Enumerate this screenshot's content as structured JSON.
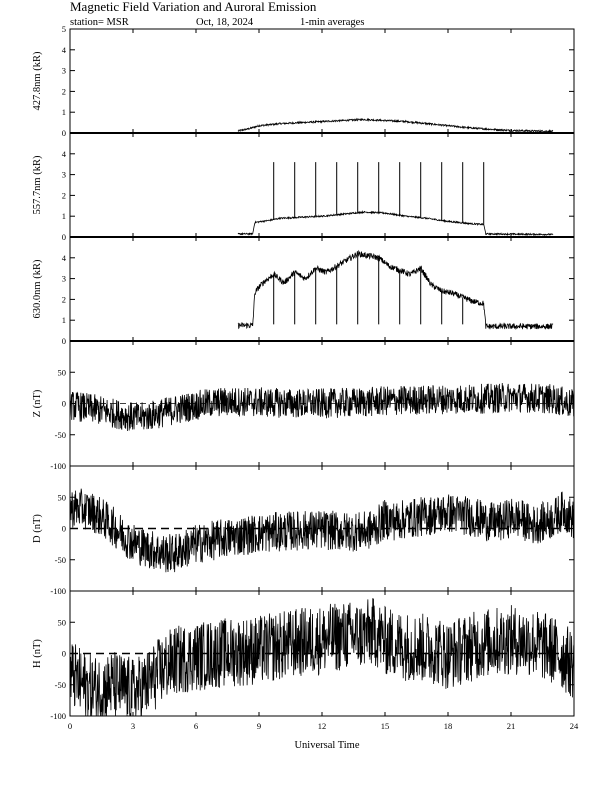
{
  "header": {
    "title": "Magnetic Field Variation and Auroral Emission",
    "station": "station= MSR",
    "date": "Oct, 18, 2024",
    "averaging": "1-min averages"
  },
  "chart_data": {
    "type": "line",
    "title": "Magnetic Field Variation and Auroral Emission",
    "xlabel": "Universal Time",
    "xlim": [
      0,
      24
    ],
    "xticks": [
      0,
      3,
      6,
      9,
      12,
      15,
      18,
      21,
      24
    ],
    "panels": [
      {
        "name": "427.8nm",
        "ylabel": "427.8nm (kR)",
        "ylim": [
          0,
          5
        ],
        "yticks": [
          0,
          1,
          2,
          3,
          4,
          5
        ],
        "zero_line": "solid",
        "noise": 0.08,
        "x": [
          8.0,
          8.5,
          9.0,
          10.0,
          11.0,
          12.0,
          13.0,
          14.0,
          15.0,
          16.0,
          17.0,
          18.0,
          19.0,
          20.0,
          21.0,
          22.0,
          23.0
        ],
        "y": [
          0.1,
          0.2,
          0.35,
          0.45,
          0.5,
          0.55,
          0.6,
          0.65,
          0.6,
          0.55,
          0.45,
          0.35,
          0.25,
          0.18,
          0.12,
          0.1,
          0.08
        ],
        "spikes": []
      },
      {
        "name": "557.7nm",
        "ylabel": "557.7nm (kR)",
        "ylim": [
          0,
          5
        ],
        "yticks": [
          0,
          1,
          2,
          3,
          4
        ],
        "zero_line": "solid",
        "noise": 0.07,
        "x": [
          8.0,
          8.7,
          8.8,
          9.5,
          10.0,
          11.0,
          12.0,
          13.0,
          14.0,
          15.0,
          16.0,
          17.0,
          18.0,
          19.0,
          19.7,
          19.8,
          23.0
        ],
        "y": [
          0.15,
          0.15,
          0.7,
          0.8,
          0.9,
          0.95,
          1.0,
          1.1,
          1.2,
          1.15,
          1.0,
          0.9,
          0.75,
          0.65,
          0.6,
          0.15,
          0.12
        ],
        "spikes": [
          9.7,
          10.7,
          11.7,
          12.7,
          13.7,
          14.7,
          15.7,
          16.7,
          17.7,
          18.7,
          19.7
        ],
        "spike_top": 3.6
      },
      {
        "name": "630.0nm",
        "ylabel": "630.0nm (kR)",
        "ylim": [
          0,
          5
        ],
        "yticks": [
          0,
          1,
          2,
          3,
          4
        ],
        "zero_line": "solid",
        "noise": 0.28,
        "x": [
          8.0,
          8.7,
          8.8,
          9.0,
          9.3,
          9.7,
          10.2,
          10.7,
          11.2,
          11.7,
          12.2,
          12.7,
          13.2,
          13.7,
          14.2,
          14.7,
          15.2,
          15.7,
          16.2,
          16.7,
          17.2,
          17.7,
          18.2,
          18.7,
          19.2,
          19.7,
          19.8,
          23.0
        ],
        "y": [
          0.75,
          0.75,
          2.3,
          2.6,
          2.9,
          3.2,
          2.8,
          3.3,
          3.0,
          3.5,
          3.3,
          3.6,
          3.9,
          4.2,
          4.1,
          4.0,
          3.6,
          3.4,
          3.2,
          3.5,
          2.7,
          2.4,
          2.3,
          2.1,
          1.9,
          1.8,
          0.7,
          0.7
        ],
        "spikes": [
          9.7,
          10.7,
          11.7,
          12.7,
          13.7,
          14.7,
          15.7,
          16.7,
          17.7,
          18.7
        ],
        "spike_bottom": 0.8
      },
      {
        "name": "Z",
        "ylabel": "Z (nT)",
        "ylim": [
          -100,
          100
        ],
        "yticks": [
          -100,
          -50,
          0,
          50
        ],
        "zero_line": "dashed-thin",
        "noise": 0.6,
        "x": [
          0,
          1,
          2,
          3,
          3.5,
          4,
          5,
          6,
          7,
          8,
          9,
          10,
          11,
          12,
          13,
          14,
          15,
          16,
          17,
          18,
          19,
          20,
          21,
          22,
          23,
          24
        ],
        "y": [
          -3,
          -8,
          -15,
          -22,
          -22,
          -18,
          -10,
          -3,
          2,
          3,
          2,
          1,
          0,
          0,
          1,
          2,
          4,
          5,
          6,
          7,
          7,
          8,
          10,
          9,
          7,
          -2
        ],
        "spikes": []
      },
      {
        "name": "D",
        "ylabel": "D (nT)",
        "ylim": [
          -100,
          100
        ],
        "yticks": [
          -100,
          -50,
          0,
          50
        ],
        "zero_line": "dashed-bold",
        "noise": 0.8,
        "x": [
          0,
          0.5,
          1,
          1.5,
          2,
          2.5,
          3,
          3.5,
          4,
          4.5,
          5,
          5.5,
          6,
          7,
          8,
          9,
          10,
          11,
          12,
          13,
          14,
          14.5,
          15,
          15.5,
          16,
          17,
          18,
          19,
          20,
          20.5,
          21,
          21.5,
          22,
          23,
          23.5,
          24
        ],
        "y": [
          33,
          32,
          28,
          18,
          5,
          -10,
          -22,
          -30,
          -35,
          -40,
          -40,
          -32,
          -25,
          -18,
          -12,
          -8,
          -5,
          -3,
          -2,
          -5,
          -5,
          0,
          15,
          12,
          15,
          20,
          25,
          20,
          10,
          10,
          18,
          15,
          5,
          15,
          30,
          12
        ],
        "spikes": []
      },
      {
        "name": "H",
        "ylabel": "H (nT)",
        "ylim": [
          -100,
          100
        ],
        "yticks": [
          -100,
          -50,
          0,
          50
        ],
        "zero_line": "dashed-bold",
        "noise": 1.4,
        "x": [
          0,
          0.5,
          1,
          1.5,
          2,
          2.5,
          3,
          3.5,
          4,
          4.5,
          5,
          5.5,
          6,
          7,
          8,
          9,
          10,
          11,
          12,
          13,
          14,
          14.5,
          15,
          16,
          17,
          17.5,
          18,
          19,
          20,
          21,
          22,
          23,
          23.5,
          24
        ],
        "y": [
          -30,
          -48,
          -57,
          -58,
          -50,
          -55,
          -63,
          -55,
          -38,
          -22,
          -12,
          -8,
          -5,
          0,
          3,
          5,
          12,
          18,
          22,
          28,
          30,
          35,
          20,
          12,
          8,
          5,
          -3,
          10,
          18,
          22,
          18,
          5,
          -5,
          -20
        ],
        "spikes": []
      }
    ]
  }
}
